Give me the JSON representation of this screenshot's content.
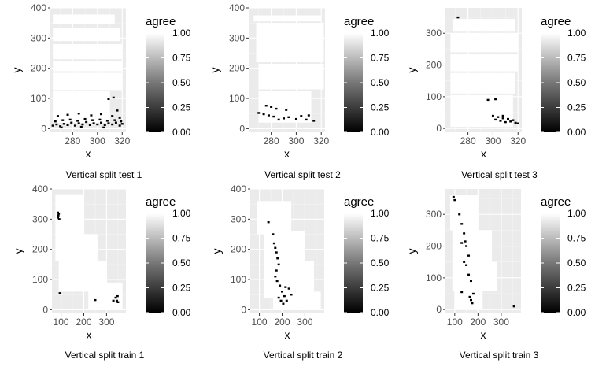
{
  "chart_data": [
    {
      "type": "heatmap",
      "caption": "Vertical split test 1",
      "xlabel": "x",
      "ylabel": "y",
      "xlim": [
        262,
        323
      ],
      "ylim": [
        -12,
        400
      ],
      "xticks": [
        280,
        300,
        320
      ],
      "yticks": [
        0,
        100,
        200,
        300,
        400
      ],
      "legend": {
        "title": "agree",
        "ticks": [
          "0.00",
          "0.25",
          "0.50",
          "0.75",
          "1.00"
        ],
        "placement": "right"
      },
      "grid": true,
      "agree_one_regions": [
        {
          "x": [
            264,
            314
          ],
          "y": [
            345,
            378
          ]
        },
        {
          "x": [
            264,
            318
          ],
          "y": [
            290,
            335
          ]
        },
        {
          "x": [
            264,
            320
          ],
          "y": [
            230,
            280
          ]
        },
        {
          "x": [
            264,
            320
          ],
          "y": [
            190,
            225
          ]
        },
        {
          "x": [
            264,
            320
          ],
          "y": [
            128,
            185
          ]
        },
        {
          "x": [
            264,
            310
          ],
          "y": [
            20,
            125
          ]
        }
      ],
      "agree_zero_points": [
        [
          264,
          10
        ],
        [
          267,
          14
        ],
        [
          270,
          8
        ],
        [
          273,
          16
        ],
        [
          276,
          12
        ],
        [
          279,
          20
        ],
        [
          282,
          10
        ],
        [
          285,
          18
        ],
        [
          288,
          14
        ],
        [
          291,
          22
        ],
        [
          294,
          12
        ],
        [
          297,
          18
        ],
        [
          300,
          14
        ],
        [
          303,
          20
        ],
        [
          306,
          12
        ],
        [
          309,
          18
        ],
        [
          312,
          14
        ],
        [
          315,
          20
        ],
        [
          318,
          10
        ],
        [
          320,
          16
        ],
        [
          266,
          24
        ],
        [
          272,
          28
        ],
        [
          278,
          30
        ],
        [
          284,
          26
        ],
        [
          290,
          32
        ],
        [
          296,
          28
        ],
        [
          302,
          30
        ],
        [
          308,
          26
        ],
        [
          314,
          28
        ],
        [
          319,
          24
        ],
        [
          268,
          42
        ],
        [
          276,
          46
        ],
        [
          285,
          50
        ],
        [
          295,
          44
        ],
        [
          303,
          48
        ],
        [
          312,
          42
        ],
        [
          318,
          36
        ],
        [
          271,
          4
        ],
        [
          287,
          6
        ],
        [
          305,
          4
        ],
        [
          316,
          60
        ],
        [
          313,
          103
        ],
        [
          309,
          98
        ]
      ]
    },
    {
      "type": "heatmap",
      "caption": "Vertical split test 2",
      "xlabel": "x",
      "ylabel": "y",
      "xlim": [
        262,
        323
      ],
      "ylim": [
        -12,
        400
      ],
      "xticks": [
        280,
        300,
        320
      ],
      "yticks": [
        0,
        100,
        200,
        300,
        400
      ],
      "legend": {
        "title": "agree",
        "ticks": [
          "0.00",
          "0.25",
          "0.50",
          "0.75",
          "1.00"
        ],
        "placement": "right"
      },
      "grid": true,
      "agree_one_regions": [
        {
          "x": [
            266,
            320
          ],
          "y": [
            355,
            375
          ]
        },
        {
          "x": [
            268,
            322
          ],
          "y": [
            220,
            350
          ]
        },
        {
          "x": [
            270,
            322
          ],
          "y": [
            130,
            215
          ]
        },
        {
          "x": [
            270,
            312
          ],
          "y": [
            20,
            125
          ]
        }
      ],
      "agree_zero_points": [
        [
          276,
          76
        ],
        [
          280,
          72
        ],
        [
          284,
          66
        ],
        [
          292,
          62
        ],
        [
          270,
          52
        ],
        [
          274,
          48
        ],
        [
          278,
          44
        ],
        [
          282,
          40
        ],
        [
          290,
          34
        ],
        [
          294,
          38
        ],
        [
          300,
          32
        ],
        [
          304,
          42
        ],
        [
          308,
          30
        ],
        [
          310,
          44
        ],
        [
          314,
          26
        ],
        [
          286,
          30
        ]
      ]
    },
    {
      "type": "heatmap",
      "caption": "Vertical split test 3",
      "xlabel": "x",
      "ylabel": "y",
      "xlim": [
        262,
        323
      ],
      "ylim": [
        -12,
        380
      ],
      "xticks": [
        280,
        300,
        320
      ],
      "yticks": [
        0,
        100,
        200,
        300
      ],
      "legend": {
        "title": "agree",
        "ticks": [
          "0.00",
          "0.25",
          "0.50",
          "0.75",
          "1.00"
        ],
        "placement": "right"
      },
      "grid": true,
      "agree_one_regions": [
        {
          "x": [
            268,
            318
          ],
          "y": [
            305,
            345
          ]
        },
        {
          "x": [
            266,
            320
          ],
          "y": [
            240,
            300
          ]
        },
        {
          "x": [
            266,
            320
          ],
          "y": [
            180,
            235
          ]
        },
        {
          "x": [
            266,
            318
          ],
          "y": [
            110,
            175
          ]
        },
        {
          "x": [
            266,
            316
          ],
          "y": [
            5,
            105
          ]
        }
      ],
      "agree_zero_points": [
        [
          272,
          350
        ],
        [
          296,
          90
        ],
        [
          302,
          92
        ],
        [
          300,
          40
        ],
        [
          304,
          36
        ],
        [
          308,
          32
        ],
        [
          312,
          30
        ],
        [
          316,
          26
        ],
        [
          306,
          24
        ],
        [
          310,
          20
        ],
        [
          314,
          22
        ],
        [
          318,
          18
        ],
        [
          302,
          28
        ],
        [
          308,
          40
        ],
        [
          320,
          16
        ]
      ]
    },
    {
      "type": "heatmap",
      "caption": "Vertical split train 1",
      "xlabel": "x",
      "ylabel": "y",
      "xlim": [
        60,
        385
      ],
      "ylim": [
        -12,
        400
      ],
      "xticks": [
        100,
        200,
        300
      ],
      "yticks": [
        0,
        100,
        200,
        300,
        400
      ],
      "legend": {
        "title": "agree",
        "ticks": [
          "0.00",
          "0.25",
          "0.50",
          "0.75",
          "1.00"
        ],
        "placement": "right"
      },
      "grid": true,
      "agree_one_regions": [
        {
          "x": [
            75,
            200
          ],
          "y": [
            250,
            380
          ]
        },
        {
          "x": [
            75,
            260
          ],
          "y": [
            160,
            250
          ]
        },
        {
          "x": [
            90,
            300
          ],
          "y": [
            60,
            160
          ]
        },
        {
          "x": [
            220,
            370
          ],
          "y": [
            0,
            90
          ]
        }
      ],
      "agree_zero_points": [
        [
          86,
          305
        ],
        [
          88,
          312
        ],
        [
          90,
          318
        ],
        [
          86,
          322
        ],
        [
          92,
          300
        ],
        [
          95,
          55
        ],
        [
          250,
          32
        ],
        [
          340,
          40
        ],
        [
          345,
          30
        ],
        [
          350,
          25
        ],
        [
          348,
          45
        ],
        [
          330,
          30
        ]
      ]
    },
    {
      "type": "heatmap",
      "caption": "Vertical split train 2",
      "xlabel": "x",
      "ylabel": "y",
      "xlim": [
        60,
        385
      ],
      "ylim": [
        -12,
        400
      ],
      "xticks": [
        100,
        200,
        300
      ],
      "yticks": [
        0,
        100,
        200,
        300,
        400
      ],
      "legend": {
        "title": "agree",
        "ticks": [
          "0.00",
          "0.25",
          "0.50",
          "0.75",
          "1.00"
        ],
        "placement": "right"
      },
      "grid": true,
      "agree_one_regions": [
        {
          "x": [
            90,
            240
          ],
          "y": [
            250,
            360
          ]
        },
        {
          "x": [
            120,
            300
          ],
          "y": [
            150,
            260
          ]
        },
        {
          "x": [
            120,
            340
          ],
          "y": [
            40,
            160
          ]
        },
        {
          "x": [
            160,
            370
          ],
          "y": [
            0,
            60
          ]
        }
      ],
      "agree_zero_points": [
        [
          140,
          290
        ],
        [
          160,
          250
        ],
        [
          165,
          220
        ],
        [
          170,
          205
        ],
        [
          175,
          190
        ],
        [
          180,
          170
        ],
        [
          185,
          150
        ],
        [
          175,
          130
        ],
        [
          170,
          110
        ],
        [
          178,
          95
        ],
        [
          190,
          80
        ],
        [
          200,
          60
        ],
        [
          210,
          45
        ],
        [
          220,
          30
        ],
        [
          230,
          70
        ],
        [
          240,
          50
        ],
        [
          185,
          40
        ],
        [
          195,
          30
        ],
        [
          205,
          20
        ],
        [
          215,
          75
        ]
      ]
    },
    {
      "type": "heatmap",
      "caption": "Vertical split train 3",
      "xlabel": "x",
      "ylabel": "y",
      "xlim": [
        60,
        385
      ],
      "ylim": [
        -12,
        380
      ],
      "xticks": [
        100,
        200,
        300
      ],
      "yticks": [
        0,
        100,
        200,
        300
      ],
      "legend": {
        "title": "agree",
        "ticks": [
          "0.00",
          "0.25",
          "0.50",
          "0.75",
          "1.00"
        ],
        "placement": "right"
      },
      "grid": true,
      "agree_one_regions": [
        {
          "x": [
            80,
            200
          ],
          "y": [
            250,
            360
          ]
        },
        {
          "x": [
            90,
            260
          ],
          "y": [
            150,
            250
          ]
        },
        {
          "x": [
            90,
            280
          ],
          "y": [
            60,
            150
          ]
        },
        {
          "x": [
            100,
            220
          ],
          "y": [
            0,
            60
          ]
        }
      ],
      "agree_zero_points": [
        [
          95,
          355
        ],
        [
          100,
          345
        ],
        [
          120,
          300
        ],
        [
          130,
          270
        ],
        [
          140,
          240
        ],
        [
          145,
          215
        ],
        [
          130,
          210
        ],
        [
          150,
          200
        ],
        [
          160,
          170
        ],
        [
          140,
          150
        ],
        [
          150,
          140
        ],
        [
          160,
          110
        ],
        [
          170,
          90
        ],
        [
          130,
          55
        ],
        [
          165,
          40
        ],
        [
          170,
          30
        ],
        [
          175,
          20
        ],
        [
          180,
          50
        ],
        [
          355,
          10
        ]
      ]
    }
  ]
}
